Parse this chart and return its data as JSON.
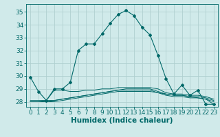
{
  "title": "",
  "xlabel": "Humidex (Indice chaleur)",
  "ylabel": "",
  "bg_color": "#d0eaea",
  "line_color": "#006868",
  "grid_color": "#b0d0d0",
  "xlim": [
    -0.5,
    23.5
  ],
  "ylim": [
    27.6,
    35.6
  ],
  "yticks": [
    28,
    29,
    30,
    31,
    32,
    33,
    34,
    35
  ],
  "xticks": [
    0,
    1,
    2,
    3,
    4,
    5,
    6,
    7,
    8,
    9,
    10,
    11,
    12,
    13,
    14,
    15,
    16,
    17,
    18,
    19,
    20,
    21,
    22,
    23
  ],
  "lines": [
    [
      29.9,
      28.8,
      28.1,
      29.0,
      29.0,
      29.5,
      32.0,
      32.5,
      32.5,
      33.3,
      34.1,
      34.8,
      35.1,
      34.7,
      33.8,
      33.2,
      31.6,
      29.8,
      28.6,
      29.3,
      28.5,
      28.9,
      27.8,
      27.8
    ],
    [
      28.1,
      28.1,
      28.1,
      28.9,
      28.9,
      28.8,
      28.8,
      28.9,
      28.9,
      29.0,
      29.0,
      29.1,
      29.1,
      29.1,
      29.1,
      29.1,
      29.0,
      28.7,
      28.6,
      28.6,
      28.5,
      28.5,
      28.4,
      28.2
    ],
    [
      28.0,
      28.0,
      28.1,
      28.1,
      28.2,
      28.3,
      28.4,
      28.5,
      28.6,
      28.7,
      28.8,
      28.9,
      29.0,
      29.0,
      29.0,
      29.0,
      28.8,
      28.6,
      28.5,
      28.5,
      28.4,
      28.4,
      28.3,
      28.1
    ],
    [
      28.0,
      28.0,
      28.0,
      28.1,
      28.2,
      28.3,
      28.4,
      28.5,
      28.6,
      28.7,
      28.8,
      28.9,
      28.9,
      28.9,
      28.9,
      28.9,
      28.7,
      28.6,
      28.5,
      28.5,
      28.4,
      28.3,
      28.2,
      28.0
    ],
    [
      28.0,
      28.0,
      28.0,
      28.0,
      28.1,
      28.2,
      28.3,
      28.4,
      28.5,
      28.6,
      28.7,
      28.8,
      28.8,
      28.8,
      28.8,
      28.8,
      28.7,
      28.5,
      28.4,
      28.4,
      28.3,
      28.3,
      28.2,
      27.8
    ]
  ],
  "main_line_idx": 0,
  "font_size": 6.5,
  "xlabel_fontsize": 7.5
}
